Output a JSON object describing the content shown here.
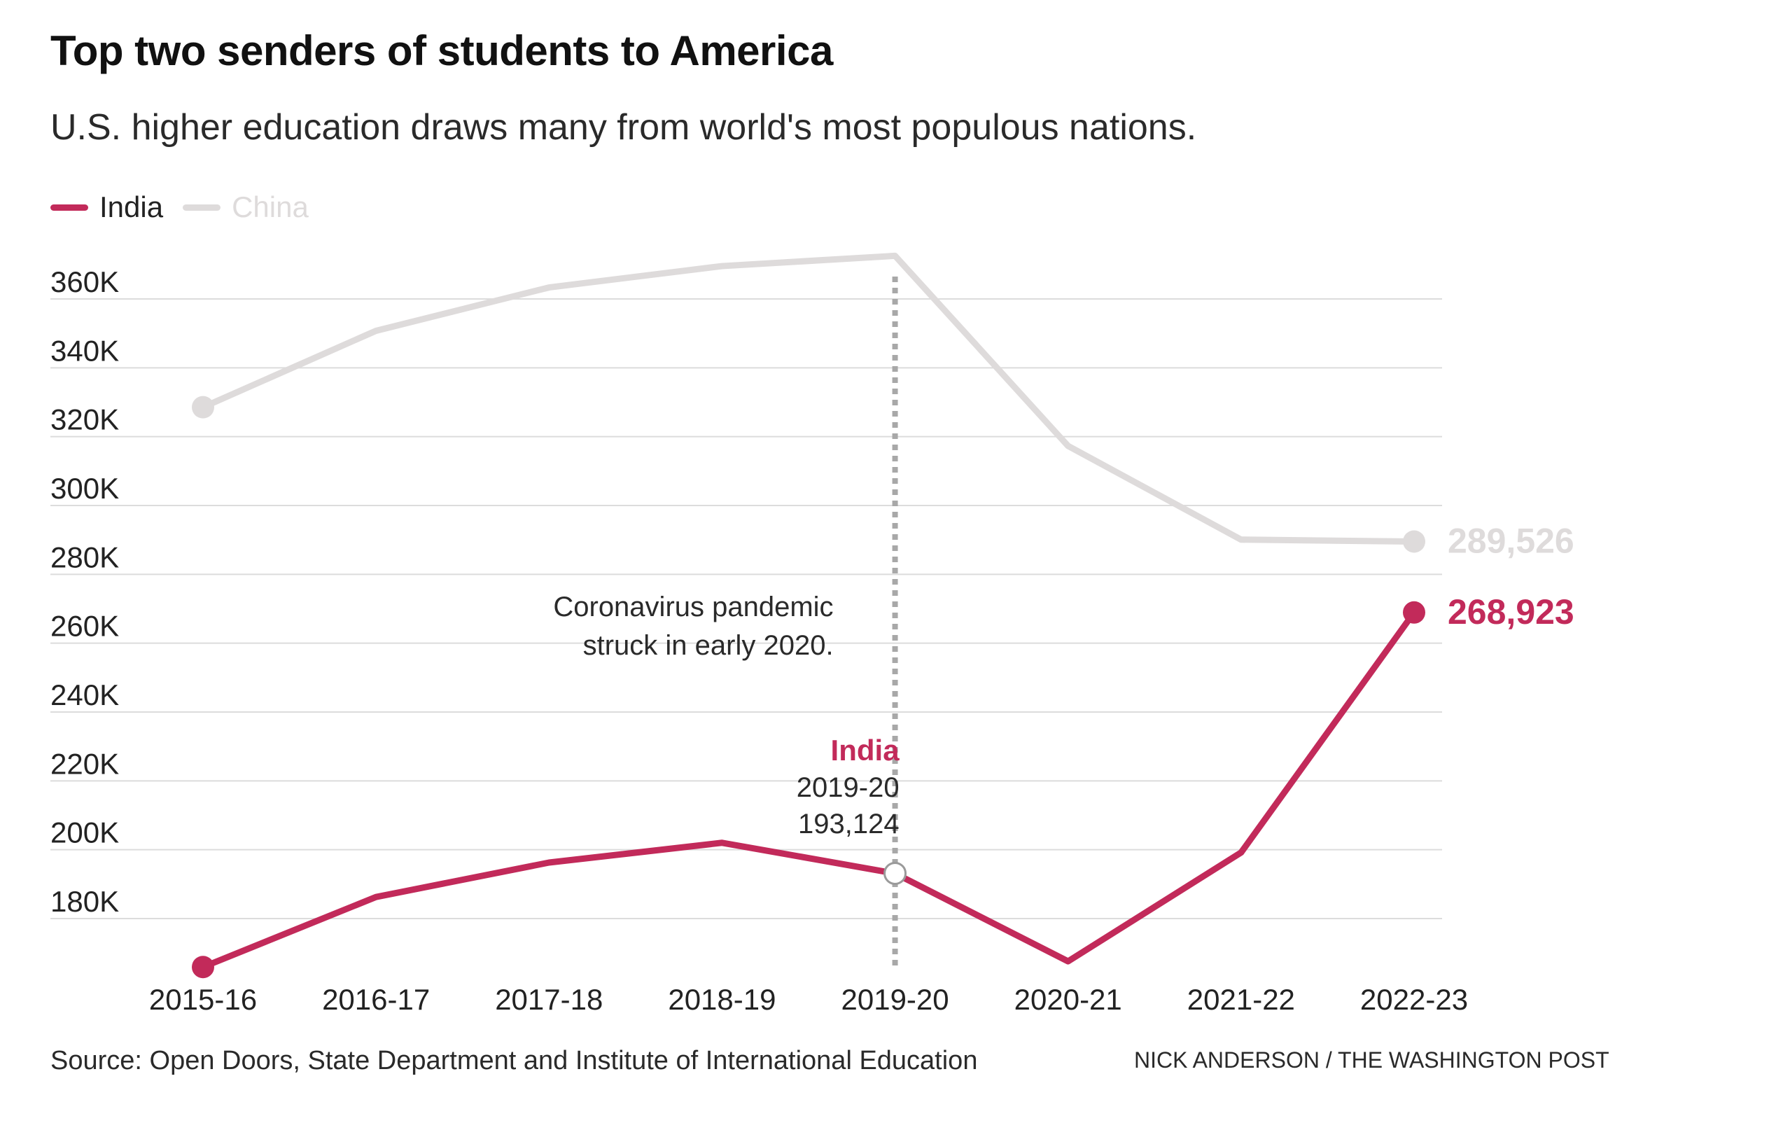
{
  "title": "Top two senders of students to America",
  "subtitle": "U.S. higher education draws many from world's most populous nations.",
  "legend": [
    {
      "label": "India",
      "color": "#c22a5a"
    },
    {
      "label": "China",
      "color": "#dedbdb"
    }
  ],
  "source": "Source: Open Doors, State Department and Institute of International Education",
  "credit": "NICK ANDERSON / THE WASHINGTON POST",
  "chart_data": {
    "type": "line",
    "categories": [
      "2015-16",
      "2016-17",
      "2017-18",
      "2018-19",
      "2019-20",
      "2020-21",
      "2021-22",
      "2022-23"
    ],
    "series": [
      {
        "name": "China",
        "color": "#dedbdb",
        "values": [
          328547,
          350755,
          363341,
          369548,
          372532,
          317299,
          290086,
          289526
        ]
      },
      {
        "name": "India",
        "color": "#c22a5a",
        "values": [
          165918,
          186267,
          196271,
          202014,
          193124,
          167582,
          199182,
          268923
        ]
      }
    ],
    "ylim": [
      160000,
      380000
    ],
    "yticks": [
      180000,
      200000,
      220000,
      240000,
      260000,
      280000,
      300000,
      320000,
      340000,
      360000
    ],
    "ytick_labels": [
      "180K",
      "200K",
      "220K",
      "240K",
      "260K",
      "280K",
      "300K",
      "320K",
      "340K",
      "360K"
    ],
    "grid": true,
    "end_labels": [
      {
        "series": "China",
        "text": "289,526",
        "color": "#dedbdb"
      },
      {
        "series": "India",
        "text": "268,923",
        "color": "#c22a5a"
      }
    ],
    "event_marker": {
      "category": "2019-20",
      "note_lines": [
        "Coronavirus pandemic",
        "struck in early 2020."
      ]
    },
    "tooltip": {
      "series_label": "India",
      "category": "2019-20",
      "value_text": "193,124",
      "color": "#c22a5a"
    }
  }
}
